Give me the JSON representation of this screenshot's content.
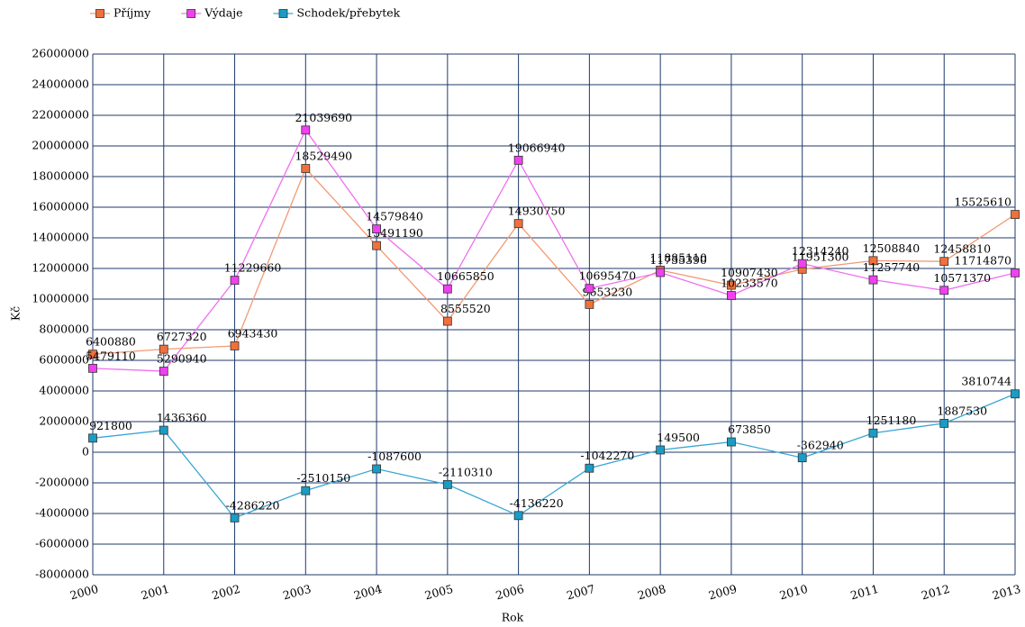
{
  "chart_data": {
    "type": "line",
    "x_label": "Rok",
    "y_label": "Kč",
    "categories": [
      "2000",
      "2001",
      "2002",
      "2003",
      "2004",
      "2005",
      "2006",
      "2007",
      "2008",
      "2009",
      "2010",
      "2011",
      "2012",
      "2013"
    ],
    "series": [
      {
        "name": "Příjmy",
        "color": "#f0703c",
        "line_color": "#f29a74",
        "values": [
          6400880,
          6727320,
          6943430,
          18529490,
          13491190,
          8555520,
          14930750,
          9653230,
          11885110,
          10907430,
          11951300,
          12508840,
          12458810,
          15525610
        ]
      },
      {
        "name": "Výdaje",
        "color": "#f040f0",
        "line_color": "#f070f0",
        "values": [
          5479110,
          5290940,
          11229660,
          21039690,
          14579840,
          10665850,
          19066940,
          10695470,
          11735390,
          10233570,
          12314240,
          11257740,
          10571370,
          11714870
        ]
      },
      {
        "name": "Schodek/přebytek",
        "color": "#1a9cc4",
        "line_color": "#3aa6d4",
        "values": [
          921800,
          1436360,
          -4286220,
          -2510150,
          -1087600,
          -2110310,
          -4136220,
          -1042270,
          149500,
          673850,
          -362940,
          1251180,
          1887530,
          3810744
        ]
      }
    ],
    "ylim": [
      -8000000,
      26000000
    ],
    "yticks": [
      -8000000,
      -6000000,
      -4000000,
      -2000000,
      0,
      2000000,
      4000000,
      6000000,
      8000000,
      10000000,
      12000000,
      14000000,
      16000000,
      18000000,
      20000000,
      22000000,
      24000000,
      26000000
    ],
    "grid": true,
    "legend": "top-left",
    "data_labels": true
  }
}
